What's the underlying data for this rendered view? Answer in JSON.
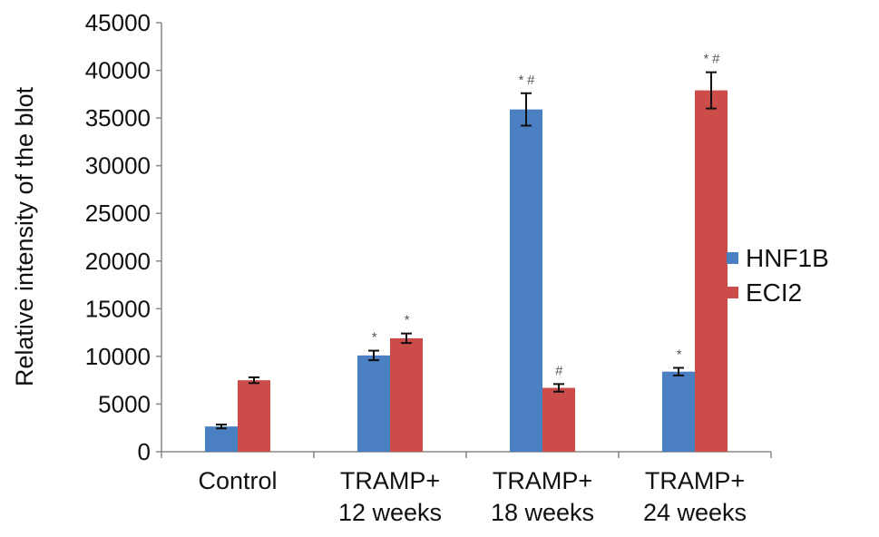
{
  "chart_data": {
    "type": "bar",
    "title": "",
    "xlabel": "",
    "ylabel": "Relative intensity of the blot",
    "ylim": [
      0,
      45000
    ],
    "yticks": [
      0,
      5000,
      10000,
      15000,
      20000,
      25000,
      30000,
      35000,
      40000,
      45000
    ],
    "grid": false,
    "legend_position": "right",
    "categories": [
      [
        "Control"
      ],
      [
        "TRAMP+",
        "12 weeks"
      ],
      [
        "TRAMP+",
        "18 weeks"
      ],
      [
        "TRAMP+",
        "24 weeks"
      ]
    ],
    "series": [
      {
        "name": "HNF1B",
        "color": "#4a7fc1",
        "values": [
          2650,
          10100,
          35900,
          8400
        ],
        "errors": [
          200,
          500,
          1700,
          400
        ],
        "annotations": [
          "",
          "*",
          "*#",
          "*"
        ]
      },
      {
        "name": "ECI2",
        "color": "#cc4c4a",
        "values": [
          7500,
          11900,
          6700,
          37900
        ],
        "errors": [
          300,
          500,
          400,
          1900
        ],
        "annotations": [
          "",
          "*",
          "#",
          "*#"
        ]
      }
    ]
  }
}
